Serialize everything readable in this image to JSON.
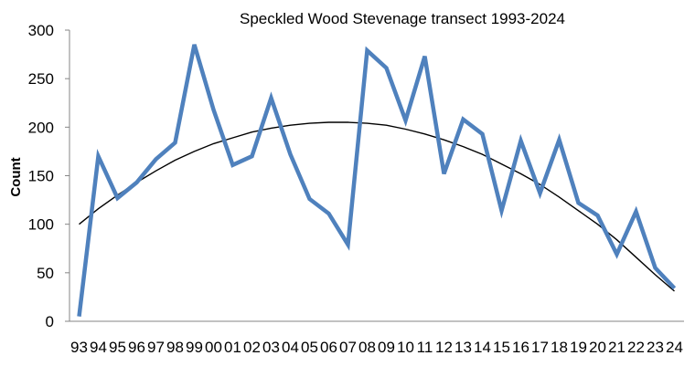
{
  "chart_data": {
    "type": "line",
    "title": "Speckled Wood Stevenage transect 1993-2024",
    "xlabel": "",
    "ylabel": "Count",
    "ylim": [
      0,
      300
    ],
    "yticks": [
      "0",
      "50",
      "100",
      "150",
      "200",
      "250",
      "300"
    ],
    "grid": false,
    "legend": "none",
    "categories": [
      "93",
      "94",
      "95",
      "96",
      "97",
      "98",
      "99",
      "00",
      "01",
      "02",
      "03",
      "04",
      "05",
      "06",
      "07",
      "08",
      "09",
      "10",
      "11",
      "12",
      "13",
      "14",
      "15",
      "16",
      "17",
      "18",
      "19",
      "20",
      "21",
      "22",
      "23",
      "24"
    ],
    "series": [
      {
        "values": [
          5,
          170,
          127,
          143,
          167,
          184,
          285,
          218,
          161,
          170,
          230,
          172,
          126,
          111,
          79,
          279,
          261,
          207,
          273,
          152,
          208,
          193,
          114,
          186,
          132,
          187,
          122,
          109,
          69,
          113,
          55,
          34
        ],
        "color": "#4f81bd"
      }
    ],
    "trendline": {
      "type": "polynomial",
      "values": [
        100,
        116,
        130,
        143,
        155,
        166,
        175,
        183,
        189,
        195,
        199,
        202,
        204,
        205,
        205,
        204,
        202,
        198,
        193,
        187,
        180,
        172,
        162,
        152,
        141,
        128,
        114,
        100,
        84,
        66,
        48,
        31
      ],
      "color": "#000000"
    }
  }
}
